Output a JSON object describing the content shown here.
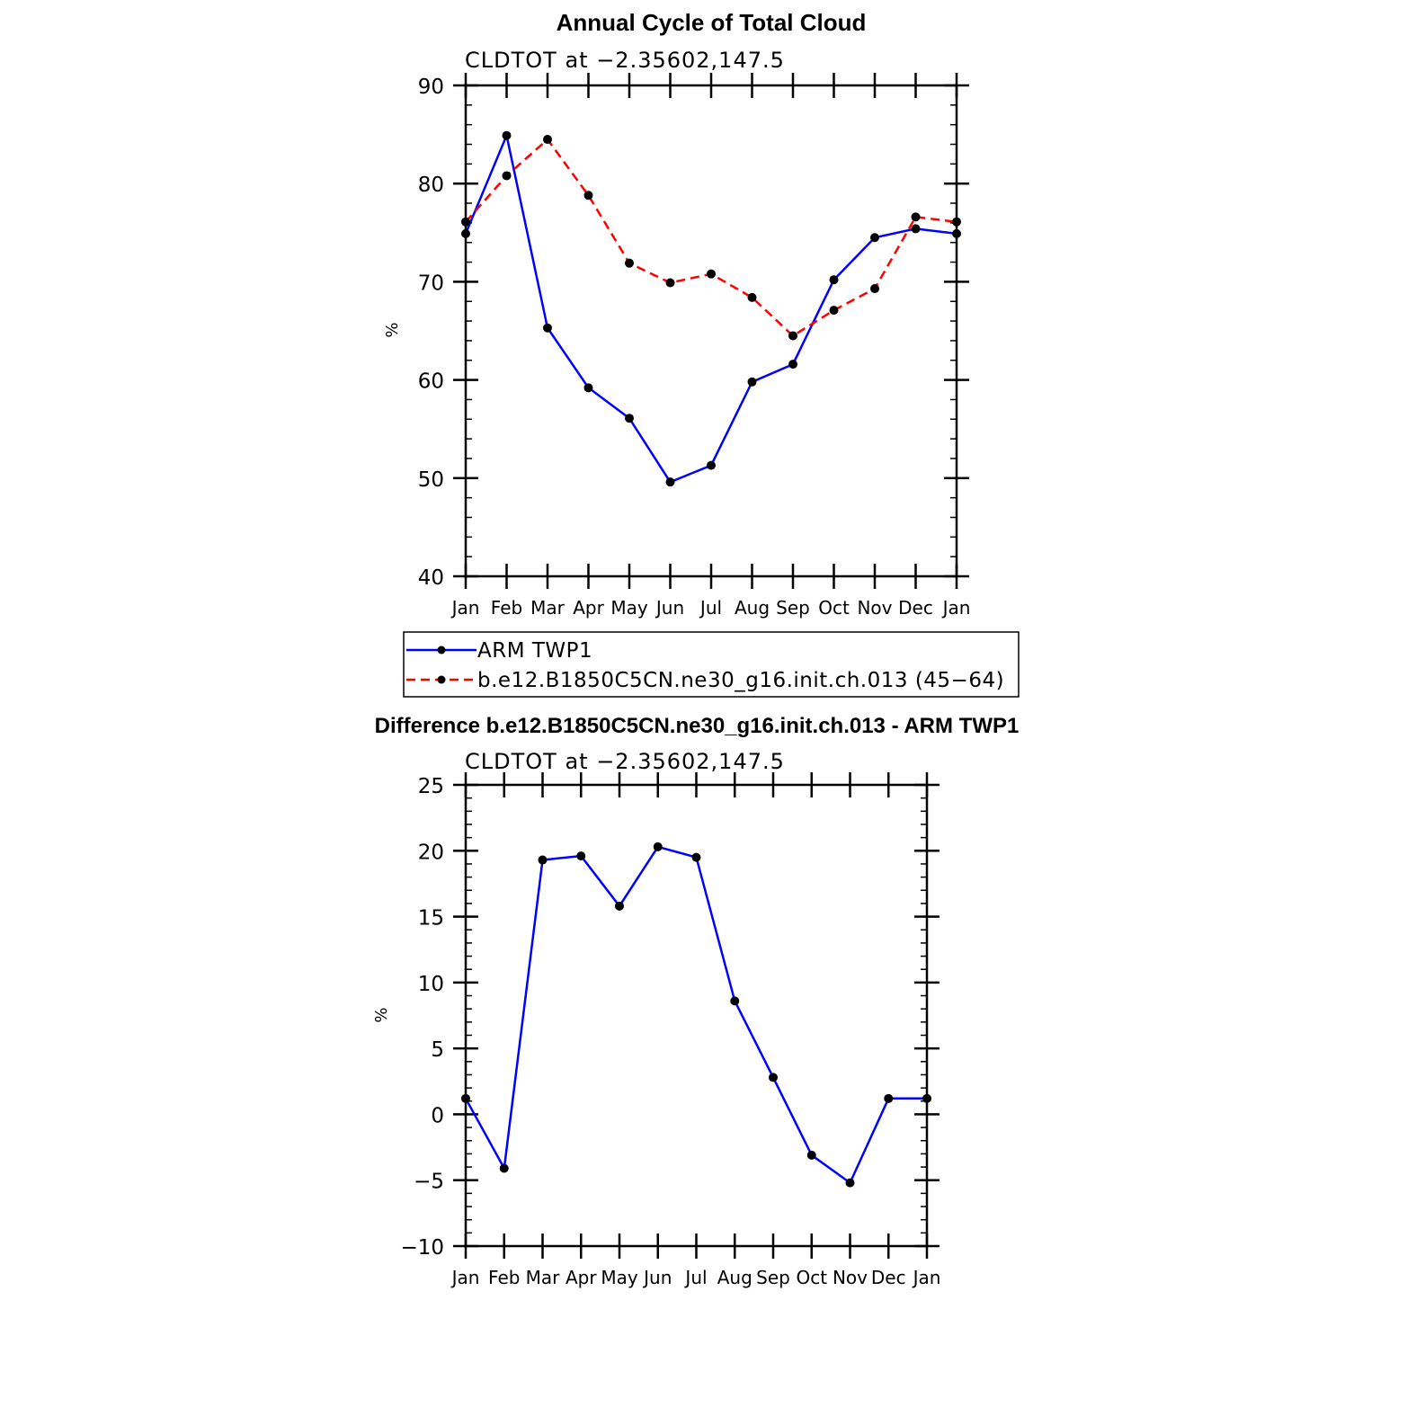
{
  "chart_data": [
    {
      "type": "line",
      "title": "Annual Cycle of Total Cloud",
      "subtitle": "CLDTOT at −2.35602,147.5",
      "ylabel": "%",
      "xlabel": "",
      "ylim": [
        40,
        90
      ],
      "yticks": [
        "40",
        "50",
        "60",
        "70",
        "80",
        "90"
      ],
      "categories": [
        "Jan",
        "Feb",
        "Mar",
        "Apr",
        "May",
        "Jun",
        "Jul",
        "Aug",
        "Sep",
        "Oct",
        "Nov",
        "Dec",
        "Jan"
      ],
      "grid": false,
      "legend_position": "bottom",
      "series": [
        {
          "name": "ARM TWP1",
          "color": "#0000ff",
          "dash": "solid",
          "values": [
            74.9,
            84.9,
            65.3,
            59.2,
            56.1,
            49.6,
            51.3,
            59.8,
            61.6,
            70.2,
            74.5,
            75.4,
            74.9
          ]
        },
        {
          "name": "b.e12.B1850C5CN.ne30_g16.init.ch.013 (45−64)",
          "color": "#ff0000",
          "dash": "dashed",
          "values": [
            76.1,
            80.8,
            84.5,
            78.8,
            71.9,
            69.9,
            70.8,
            68.4,
            64.5,
            67.1,
            69.3,
            76.6,
            76.1
          ]
        }
      ]
    },
    {
      "type": "line",
      "title": "Difference b.e12.B1850C5CN.ne30_g16.init.ch.013 - ARM TWP1",
      "subtitle": "CLDTOT at −2.35602,147.5",
      "ylabel": "%",
      "xlabel": "",
      "ylim": [
        -10,
        25
      ],
      "yticks": [
        "−10",
        "−5",
        "0",
        "5",
        "10",
        "15",
        "20",
        "25"
      ],
      "categories": [
        "Jan",
        "Feb",
        "Mar",
        "Apr",
        "May",
        "Jun",
        "Jul",
        "Aug",
        "Sep",
        "Oct",
        "Nov",
        "Dec",
        "Jan"
      ],
      "grid": false,
      "series": [
        {
          "color": "#0000ff",
          "dash": "solid",
          "values": [
            1.2,
            -4.1,
            19.3,
            19.6,
            15.8,
            20.3,
            19.5,
            8.6,
            2.8,
            -3.1,
            -5.2,
            1.2,
            1.2
          ]
        }
      ]
    }
  ]
}
